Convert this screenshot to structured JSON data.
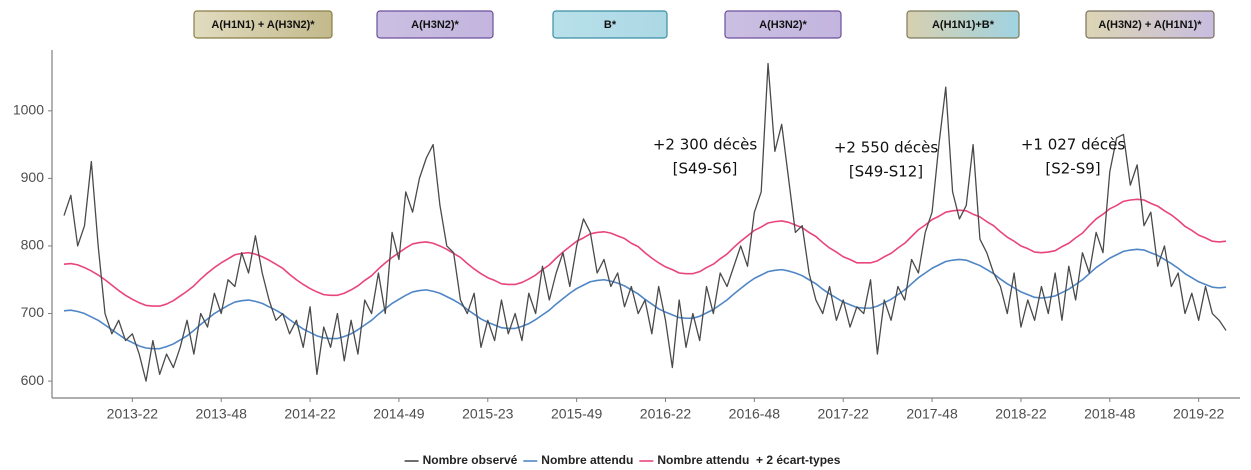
{
  "chart_data": {
    "type": "line",
    "categories": [
      null,
      null,
      null,
      null,
      null,
      null,
      null,
      null,
      null,
      null,
      "2013-22",
      null,
      null,
      null,
      null,
      null,
      null,
      null,
      null,
      null,
      null,
      null,
      null,
      "2013-48",
      null,
      null,
      null,
      null,
      null,
      null,
      null,
      null,
      null,
      null,
      null,
      null,
      "2014-22",
      null,
      null,
      null,
      null,
      null,
      null,
      null,
      null,
      null,
      null,
      null,
      null,
      "2014-49",
      null,
      null,
      null,
      null,
      null,
      null,
      null,
      null,
      null,
      null,
      null,
      null,
      "2015-23",
      null,
      null,
      null,
      null,
      null,
      null,
      null,
      null,
      null,
      null,
      null,
      null,
      "2015-49",
      null,
      null,
      null,
      null,
      null,
      null,
      null,
      null,
      null,
      null,
      null,
      null,
      "2016-22",
      null,
      null,
      null,
      null,
      null,
      null,
      null,
      null,
      null,
      null,
      null,
      null,
      "2016-48",
      null,
      null,
      null,
      null,
      null,
      null,
      null,
      null,
      null,
      null,
      null,
      null,
      "2017-22",
      null,
      null,
      null,
      null,
      null,
      null,
      null,
      null,
      null,
      null,
      null,
      null,
      "2017-48",
      null,
      null,
      null,
      null,
      null,
      null,
      null,
      null,
      null,
      null,
      null,
      null,
      "2018-22",
      null,
      null,
      null,
      null,
      null,
      null,
      null,
      null,
      null,
      null,
      null,
      null,
      "2018-48",
      null,
      null,
      null,
      null,
      null,
      null,
      null,
      null,
      null,
      null,
      null,
      null,
      "2019-22",
      null,
      null,
      null,
      null
    ],
    "series": [
      {
        "name": "Nombre observé",
        "color": "#4a4a4a",
        "values": [
          845,
          875,
          800,
          830,
          925,
          800,
          700,
          670,
          690,
          660,
          670,
          640,
          600,
          660,
          610,
          640,
          620,
          650,
          690,
          640,
          700,
          680,
          730,
          700,
          750,
          740,
          790,
          760,
          815,
          760,
          720,
          690,
          700,
          670,
          690,
          650,
          710,
          610,
          680,
          650,
          700,
          630,
          690,
          640,
          720,
          700,
          760,
          700,
          820,
          780,
          880,
          850,
          900,
          930,
          950,
          860,
          800,
          790,
          720,
          700,
          730,
          650,
          690,
          660,
          720,
          670,
          700,
          660,
          730,
          700,
          770,
          720,
          760,
          790,
          740,
          800,
          840,
          820,
          760,
          780,
          740,
          760,
          710,
          740,
          700,
          720,
          670,
          740,
          690,
          620,
          720,
          650,
          700,
          660,
          740,
          700,
          760,
          740,
          770,
          800,
          770,
          850,
          880,
          1070,
          940,
          980,
          900,
          820,
          830,
          760,
          720,
          700,
          740,
          690,
          720,
          680,
          710,
          700,
          750,
          640,
          720,
          690,
          740,
          720,
          780,
          760,
          820,
          850,
          950,
          1035,
          880,
          840,
          860,
          950,
          810,
          790,
          760,
          740,
          700,
          760,
          680,
          720,
          690,
          740,
          700,
          760,
          690,
          770,
          720,
          790,
          760,
          820,
          790,
          910,
          960,
          965,
          890,
          920,
          830,
          850,
          770,
          800,
          740,
          760,
          700,
          730,
          690,
          740,
          700,
          690,
          675
        ]
      },
      {
        "name": "Nombre attendu",
        "color": "#4f86c6",
        "values": [
          704,
          705,
          703,
          700,
          695,
          690,
          683,
          676,
          669,
          662,
          657,
          652,
          649,
          648,
          648,
          651,
          655,
          661,
          667,
          675,
          684,
          692,
          700,
          706,
          712,
          717,
          719,
          720,
          718,
          715,
          710,
          705,
          699,
          691,
          684,
          677,
          672,
          667,
          664,
          663,
          663,
          666,
          670,
          676,
          683,
          690,
          699,
          707,
          715,
          721,
          727,
          732,
          734,
          735,
          733,
          730,
          725,
          720,
          714,
          706,
          699,
          692,
          687,
          683,
          679,
          678,
          678,
          681,
          685,
          691,
          698,
          705,
          714,
          722,
          730,
          737,
          742,
          747,
          749,
          750,
          748,
          745,
          741,
          735,
          729,
          721,
          714,
          707,
          702,
          698,
          694,
          693,
          693,
          696,
          701,
          706,
          713,
          720,
          729,
          737,
          745,
          752,
          757,
          762,
          764,
          765,
          763,
          760,
          756,
          750,
          744,
          736,
          729,
          723,
          717,
          713,
          709,
          708,
          708,
          711,
          716,
          721,
          728,
          735,
          744,
          753,
          760,
          767,
          772,
          777,
          779,
          780,
          779,
          775,
          771,
          765,
          759,
          751,
          744,
          738,
          732,
          728,
          724,
          723,
          724,
          726,
          731,
          736,
          743,
          750,
          759,
          768,
          775,
          782,
          787,
          792,
          794,
          795,
          794,
          790,
          786,
          780,
          774,
          767,
          759,
          753,
          747,
          743,
          739,
          738,
          739
        ]
      },
      {
        "name": "Nombre attendu  + 2 écart-types",
        "color": "#e9457d",
        "values": [
          773,
          774,
          772,
          768,
          763,
          757,
          750,
          742,
          734,
          727,
          721,
          716,
          712,
          711,
          711,
          714,
          719,
          726,
          733,
          741,
          751,
          760,
          768,
          775,
          781,
          787,
          789,
          790,
          788,
          784,
          779,
          773,
          767,
          758,
          750,
          743,
          737,
          732,
          728,
          727,
          727,
          730,
          735,
          741,
          749,
          756,
          766,
          775,
          783,
          790,
          797,
          803,
          805,
          806,
          804,
          800,
          795,
          789,
          783,
          774,
          766,
          759,
          753,
          749,
          744,
          743,
          743,
          746,
          751,
          757,
          765,
          772,
          782,
          791,
          799,
          807,
          812,
          818,
          820,
          821,
          819,
          815,
          811,
          804,
          799,
          790,
          782,
          775,
          769,
          765,
          760,
          759,
          759,
          762,
          768,
          773,
          781,
          788,
          798,
          807,
          815,
          823,
          828,
          834,
          836,
          837,
          835,
          831,
          827,
          820,
          814,
          805,
          797,
          791,
          784,
          780,
          775,
          775,
          775,
          778,
          784,
          789,
          797,
          804,
          814,
          824,
          831,
          839,
          844,
          850,
          852,
          853,
          852,
          847,
          843,
          836,
          830,
          821,
          813,
          807,
          800,
          796,
          791,
          790,
          791,
          793,
          799,
          804,
          812,
          819,
          830,
          840,
          847,
          855,
          860,
          866,
          868,
          869,
          868,
          863,
          859,
          852,
          846,
          838,
          829,
          823,
          816,
          812,
          807,
          806,
          807
        ]
      }
    ],
    "ylim": [
      575,
      1090
    ],
    "yticks": [
      600,
      700,
      800,
      900,
      1000
    ],
    "grid": false,
    "legend": "bottom",
    "annotations": [
      [
        "+2 300 décès",
        "[S49-S6]"
      ],
      [
        "+2 550 décès",
        "[S49-S12]"
      ],
      [
        "+1 027 décès",
        "[S2-S9]"
      ]
    ],
    "strain_labels": [
      {
        "text": "A(H1N1) + A(H3N2)*",
        "colors": [
          "#e2dcc0",
          "#c2b98c"
        ],
        "border": "#8a7d45"
      },
      {
        "text": "A(H3N2)*",
        "colors": [
          "#cbbfe2",
          "#c3b5de"
        ],
        "border": "#6b4f9c"
      },
      {
        "text": "B*",
        "colors": [
          "#b8e0ea",
          "#acd8e4"
        ],
        "border": "#3b8ea3"
      },
      {
        "text": "A(H3N2)*",
        "colors": [
          "#cbbfe2",
          "#c3b5de"
        ],
        "border": "#6b4f9c"
      },
      {
        "text": "A(H1N1)+B*",
        "colors": [
          "#d8d0b0",
          "#9fd3e2"
        ],
        "border": "#7c7a5a"
      },
      {
        "text": "A(H3N2) + A(H1N1)*",
        "colors": [
          "#dcd5b4",
          "#c8bde0"
        ],
        "border": "#7c6f60"
      }
    ]
  }
}
